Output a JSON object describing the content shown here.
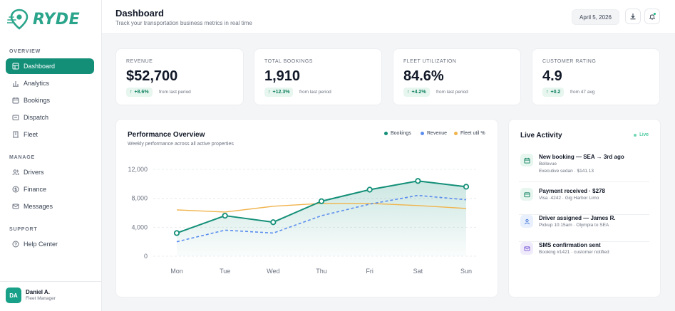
{
  "brand": {
    "name": "RYDE",
    "color": "#2aa58b"
  },
  "sidebar": {
    "sections": [
      {
        "title": "OVERVIEW"
      },
      {
        "title": "MANAGE"
      },
      {
        "title": "SUPPORT"
      }
    ],
    "items": [
      {
        "label": "Dashboard",
        "icon": "dashboard-icon",
        "active": true
      },
      {
        "label": "Analytics",
        "icon": "bar-chart-icon"
      },
      {
        "label": "Bookings",
        "icon": "calendar-icon"
      },
      {
        "label": "Dispatch",
        "icon": "dispatch-icon"
      },
      {
        "label": "Fleet",
        "icon": "building-icon"
      },
      {
        "label": "Drivers",
        "icon": "users-icon"
      },
      {
        "label": "Finance",
        "icon": "dollar-icon"
      },
      {
        "label": "Messages",
        "icon": "mail-icon"
      },
      {
        "label": "Help Center",
        "icon": "help-icon"
      }
    ],
    "user": {
      "initials": "DA",
      "name": "Daniel A.",
      "role": "Fleet Manager"
    }
  },
  "header": {
    "title": "Dashboard",
    "subtitle": "Track your transportation business metrics in real time",
    "date": "April 5, 2026"
  },
  "kpis": [
    {
      "label": "REVENUE",
      "value": "$52,700",
      "change": "+8.6%",
      "note": "from last period"
    },
    {
      "label": "TOTAL BOOKINGS",
      "value": "1,910",
      "change": "+12.3%",
      "note": "from last period"
    },
    {
      "label": "FLEET UTILIZATION",
      "value": "84.6%",
      "change": "+4.2%",
      "note": "from last period"
    },
    {
      "label": "CUSTOMER RATING",
      "value": "4.9",
      "change": "+0.2",
      "note": "from 47 avg"
    }
  ],
  "performance": {
    "title": "Performance Overview",
    "subtitle": "Weekly performance across all active properties",
    "legend": [
      {
        "name": "Bookings",
        "color": "#138f78"
      },
      {
        "name": "Revenue",
        "color": "#5b8def"
      },
      {
        "name": "Fleet util %",
        "color": "#f0b44c"
      }
    ]
  },
  "chart_data": {
    "type": "line",
    "x": [
      "Mon",
      "Tue",
      "Wed",
      "Thu",
      "Fri",
      "Sat",
      "Sun"
    ],
    "yticks": [
      "12,000",
      "8,000",
      "4,000",
      "0"
    ],
    "ylim": [
      0,
      12000
    ],
    "grid": true,
    "legend_position": "top-right",
    "series": [
      {
        "name": "Bookings",
        "values": [
          3200,
          5600,
          4700,
          7600,
          9200,
          10400,
          9600
        ],
        "color": "#138f78"
      },
      {
        "name": "Revenue",
        "values": [
          2000,
          3600,
          3200,
          5600,
          7200,
          8400,
          7800
        ],
        "color": "#5b8def"
      },
      {
        "name": "Fleet util %",
        "values": [
          6400,
          6100,
          6900,
          7300,
          7300,
          7000,
          6600
        ],
        "color": "#f0b44c"
      }
    ]
  },
  "live": {
    "title": "Live Activity",
    "status": "Live",
    "items": [
      {
        "title": "New booking — SEA → 3rd ago",
        "line1": "Bellevue",
        "line2": "Executive sedan · $141.13",
        "icon": "calendar-icon",
        "bg": "#e7f6ef",
        "fg": "#128262"
      },
      {
        "title": "Payment received · $278",
        "line1": "Visa ·4242 · Gig Harbor Limo",
        "line2": "",
        "icon": "card-icon",
        "bg": "#e7f6ef",
        "fg": "#128262"
      },
      {
        "title": "Driver assigned — James R.",
        "line1": "Pickup 10:15am · Olympia to SEA",
        "line2": "",
        "icon": "user-icon",
        "bg": "#e8effd",
        "fg": "#3b6fd8"
      },
      {
        "title": "SMS confirmation sent",
        "line1": "Booking #1421 · customer notified",
        "line2": "",
        "icon": "message-icon",
        "bg": "#f0ebfb",
        "fg": "#7a5bd6"
      }
    ]
  }
}
